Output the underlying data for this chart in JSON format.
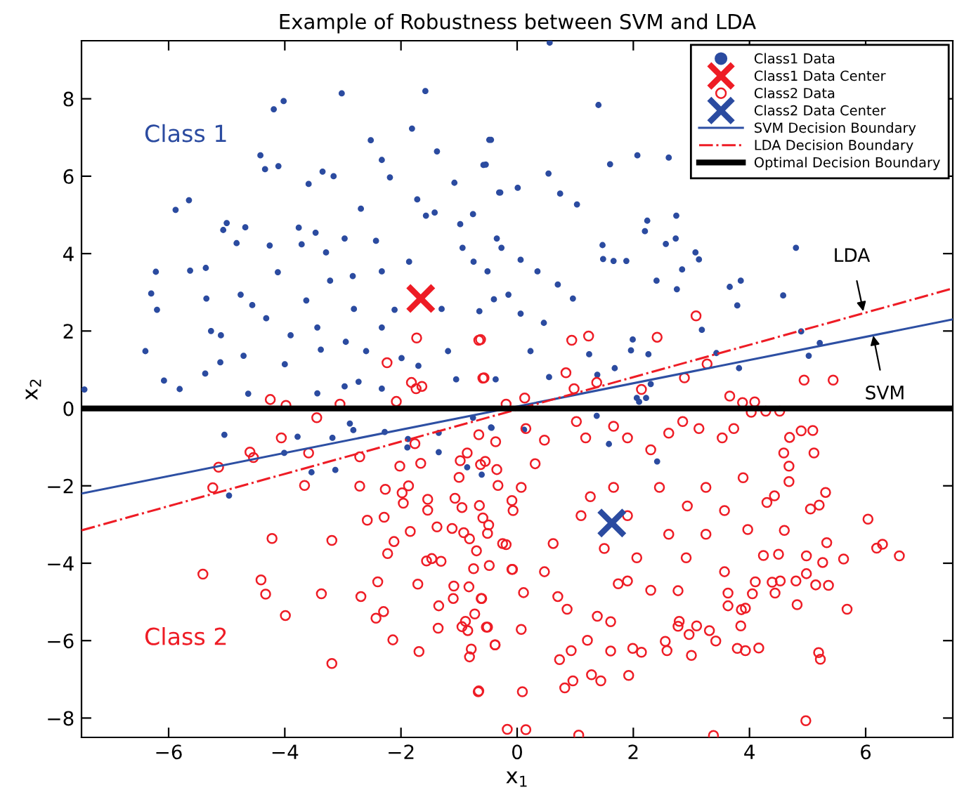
{
  "chart_data": {
    "type": "scatter",
    "title": "Example of Robustness between SVM and LDA",
    "xlabel": "x$_{1}$",
    "ylabel": "x$_{2}$",
    "xlim": [
      -7.5,
      7.5
    ],
    "ylim": [
      -8.5,
      9.5
    ],
    "xticks": [
      -6,
      -4,
      -2,
      0,
      2,
      4,
      6
    ],
    "yticks": [
      -8,
      -6,
      -4,
      -2,
      0,
      2,
      4,
      6,
      8
    ],
    "grid": false,
    "legend": "top right",
    "series": [
      {
        "name": "Class1 Data",
        "marker": "circle",
        "color": "#2b4ba0",
        "x": [
          -7.45,
          -6.4,
          -6.3,
          -6.22,
          -6.2,
          -6.08,
          -5.88,
          -5.81,
          -5.65,
          -5.63,
          -5.36,
          -5.37,
          -5.35,
          -5.27,
          -5.11,
          -5.1,
          -5.06,
          -5.0,
          -4.83,
          -4.76,
          -4.68,
          -4.63,
          -4.56,
          -4.42,
          -4.34,
          -4.19,
          -4.02,
          -4.11,
          -4.26,
          -4.12,
          -4.0,
          -3.9,
          -3.76,
          -3.71,
          -3.63,
          -3.59,
          -3.47,
          -3.35,
          -3.38,
          -3.22,
          -3.16,
          -3.02,
          -2.95,
          -2.83,
          -2.69,
          -2.52,
          -2.6,
          -2.33,
          -2.43,
          -2.19,
          -2.11,
          -1.99,
          -1.81,
          -1.58,
          -1.38,
          -1.72,
          -1.57,
          -1.3,
          -1.42,
          -1.08,
          -1.19,
          -0.94,
          -0.76,
          -0.58,
          -0.48,
          -0.31,
          -0.51,
          -0.65,
          -0.37,
          -0.15,
          -1.05,
          -1.7,
          -2.73,
          -3.44,
          -2.33,
          -2.97,
          -2.33,
          -2.81,
          -3.44,
          -4.32,
          -4.71,
          -2.33,
          -1.86,
          -0.98,
          -0.75,
          -0.35,
          -2.97,
          -3.29,
          0.56,
          1.4,
          -0.45,
          -0.54,
          0.54,
          0.01,
          -0.29,
          0.74,
          1.03,
          1.6,
          2.07,
          2.61,
          2.24,
          2.2,
          2.74,
          2.73,
          2.56,
          1.47,
          1.48,
          1.66,
          1.88,
          2.4,
          2.75,
          3.07,
          3.13,
          2.84,
          3.66,
          3.85,
          3.79,
          4.58,
          4.8,
          4.89,
          5.02,
          5.21,
          3.82,
          3.43,
          3.18,
          1.99,
          1.96,
          2.26,
          1.68,
          1.24,
          0.96,
          0.7,
          0.35,
          0.06,
          -0.27,
          -0.4,
          0.06,
          0.46,
          0.23,
          0.55,
          1.38,
          2.06,
          2.3,
          -5.04,
          -4.96,
          -4.01,
          -3.78,
          -3.54,
          -3.13,
          -3.18,
          -2.88,
          -2.82,
          -2.28,
          -1.88,
          -1.89,
          -1.35,
          -1.35,
          -0.86,
          -0.61,
          -0.44,
          -0.76,
          -0.45,
          0.12,
          1.37,
          1.58,
          2.41,
          2.1,
          2.22
        ],
        "values": [
          0.49,
          1.48,
          2.97,
          3.53,
          2.55,
          0.72,
          5.13,
          0.5,
          5.38,
          3.56,
          3.63,
          0.9,
          2.84,
          2.0,
          1.19,
          1.89,
          4.61,
          4.79,
          4.27,
          2.94,
          4.68,
          0.38,
          2.67,
          6.54,
          6.18,
          7.73,
          7.94,
          6.26,
          4.21,
          3.52,
          1.14,
          1.89,
          4.67,
          4.24,
          2.79,
          5.8,
          4.54,
          6.12,
          1.52,
          3.3,
          6.0,
          8.14,
          1.72,
          3.42,
          5.16,
          6.93,
          1.48,
          6.42,
          4.33,
          5.97,
          2.55,
          1.3,
          7.23,
          8.2,
          6.64,
          5.4,
          4.98,
          2.57,
          5.06,
          5.83,
          1.48,
          4.15,
          5.02,
          6.29,
          6.94,
          5.58,
          3.54,
          2.51,
          0.75,
          2.94,
          0.75,
          1.1,
          0.69,
          0.39,
          0.51,
          0.57,
          2.09,
          2.57,
          2.09,
          2.33,
          1.36,
          3.54,
          3.79,
          4.76,
          3.79,
          4.39,
          4.39,
          4.03,
          9.45,
          7.84,
          6.94,
          6.3,
          6.07,
          5.7,
          5.58,
          5.55,
          5.27,
          6.31,
          6.54,
          6.48,
          4.85,
          4.58,
          4.98,
          4.39,
          4.25,
          4.22,
          3.86,
          3.81,
          3.81,
          3.3,
          3.08,
          4.03,
          3.85,
          3.59,
          3.14,
          3.3,
          2.66,
          2.92,
          4.15,
          1.99,
          1.36,
          1.69,
          1.04,
          1.43,
          2.03,
          1.78,
          1.5,
          1.4,
          1.04,
          1.4,
          2.84,
          3.2,
          3.54,
          3.84,
          4.15,
          2.82,
          2.45,
          2.21,
          1.48,
          0.81,
          0.87,
          0.27,
          0.63,
          -0.68,
          -2.25,
          -1.15,
          -0.73,
          -1.65,
          -1.59,
          -0.76,
          -0.39,
          -0.56,
          -0.61,
          -0.79,
          -1.01,
          -1.13,
          -0.63,
          -1.52,
          -1.71,
          -0.5,
          -0.24,
          -0.49,
          -0.55,
          -0.19,
          -0.92,
          -1.37,
          0.17,
          0.27
        ]
      },
      {
        "name": "Class1 Data Center",
        "marker": "cross",
        "color": "#ee1c25",
        "x": [
          -1.66
        ],
        "values": [
          2.84
        ]
      },
      {
        "name": "Class2 Data",
        "marker": "circle",
        "color": "#ee1c25",
        "x": [
          -1.73,
          -2.24,
          -1.82,
          -1.74,
          -1.64,
          -2.08,
          -3.05,
          -3.98,
          -4.25,
          -0.66,
          -0.59,
          -0.19,
          3.08,
          2.41,
          1.23,
          0.94,
          -0.63,
          0.84,
          2.88,
          3.27,
          4.94,
          5.44,
          0.98,
          1.37,
          2.14,
          3.66,
          3.88,
          4.09,
          -0.57,
          0.13,
          -5.41,
          -5.24,
          -5.14,
          -4.6,
          -4.54,
          -4.41,
          -4.33,
          -4.22,
          -4.06,
          -3.99,
          -3.66,
          -3.59,
          -3.45,
          -3.37,
          -3.19,
          -3.19,
          -2.71,
          -2.71,
          -2.69,
          -2.58,
          -2.43,
          -2.4,
          -2.3,
          -2.29,
          -2.27,
          -2.23,
          -2.14,
          -2.12,
          -2.02,
          -1.98,
          -1.96,
          -1.87,
          -1.84,
          -1.76,
          -1.71,
          -1.69,
          -1.66,
          -1.56,
          -1.54,
          -1.54,
          -1.47,
          -1.38,
          -1.36,
          -1.35,
          -1.31,
          -1.12,
          -1.1,
          -1.09,
          -1.07,
          -1.0,
          -0.98,
          -0.95,
          -0.92,
          -0.95,
          -0.89,
          -0.86,
          -0.85,
          -0.83,
          -0.82,
          -0.82,
          -0.79,
          -0.75,
          -0.73,
          -0.7,
          -0.67,
          -0.66,
          -0.65,
          -0.63,
          -0.61,
          -0.59,
          -0.55,
          -0.51,
          -0.51,
          -0.48,
          -0.38,
          -0.37,
          -0.35,
          -0.33,
          -0.19,
          -0.17,
          -0.09,
          -0.07,
          -0.66,
          0.15,
          0.09,
          0.07,
          0.11,
          -0.38,
          -0.62,
          -0.53,
          -0.08,
          -0.49,
          -0.25,
          0.07,
          -0.09,
          0.31,
          0.47,
          0.15,
          0.73,
          0.93,
          0.96,
          0.82,
          1.06,
          1.28,
          1.44,
          1.21,
          1.38,
          1.61,
          1.92,
          1.99,
          2.14,
          1.61,
          1.74,
          1.9,
          0.86,
          0.7,
          0.47,
          0.62,
          1.1,
          1.26,
          1.66,
          1.9,
          2.06,
          2.3,
          2.55,
          2.58,
          2.79,
          2.77,
          2.96,
          3.0,
          3.09,
          3.31,
          3.38,
          3.42,
          3.85,
          3.79,
          3.93,
          4.16,
          3.86,
          3.93,
          3.63,
          3.63,
          4.05,
          4.1,
          4.39,
          4.53,
          4.44,
          4.82,
          4.97,
          5.19,
          5.22,
          5.36,
          5.14,
          4.98,
          4.8,
          4.98,
          5.26,
          5.33,
          5.62,
          5.68,
          6.04,
          6.19,
          6.29,
          6.58,
          5.31,
          5.05,
          5.2,
          4.43,
          4.3,
          4.6,
          4.5,
          4.24,
          4.68,
          4.68,
          4.59,
          5.11,
          4.89,
          5.09,
          4.69,
          4.28,
          4.52,
          4.03,
          3.73,
          3.53,
          3.13,
          2.85,
          2.61,
          2.3,
          1.9,
          1.66,
          1.18,
          1.02,
          3.57,
          3.25,
          2.93,
          2.61,
          2.91,
          3.25,
          3.89,
          3.97,
          3.57,
          2.77,
          2.45,
          1.5
        ],
        "values": [
          1.82,
          1.18,
          0.67,
          0.51,
          0.57,
          0.18,
          0.11,
          0.08,
          0.23,
          1.76,
          0.78,
          0.11,
          2.39,
          1.84,
          1.87,
          1.76,
          1.78,
          0.92,
          0.79,
          1.15,
          0.73,
          0.73,
          0.51,
          0.67,
          0.49,
          0.32,
          0.15,
          0.17,
          0.79,
          0.27,
          -4.28,
          -2.05,
          -1.52,
          -1.13,
          -1.27,
          -4.43,
          -4.8,
          -3.36,
          -0.76,
          -5.35,
          -1.99,
          -1.15,
          -0.24,
          -4.79,
          -6.59,
          -3.41,
          -1.25,
          -2.01,
          -4.86,
          -2.89,
          -5.42,
          -4.48,
          -5.25,
          -2.81,
          -2.09,
          -3.75,
          -5.98,
          -3.44,
          -1.49,
          -2.18,
          -2.45,
          -2.0,
          -3.18,
          -0.91,
          -4.54,
          -6.28,
          -1.42,
          -3.94,
          -2.35,
          -2.63,
          -3.88,
          -3.06,
          -5.68,
          -5.1,
          -3.95,
          -3.1,
          -4.91,
          -4.59,
          -2.32,
          -1.78,
          -1.35,
          -2.56,
          -3.21,
          -5.64,
          -5.5,
          -1.15,
          -5.74,
          -4.61,
          -6.42,
          -3.37,
          -6.22,
          -4.14,
          -5.31,
          -3.68,
          -7.32,
          -0.68,
          -2.51,
          -1.45,
          -4.91,
          -2.83,
          -1.37,
          -3.23,
          -5.65,
          -4.06,
          -6.11,
          -0.86,
          -1.58,
          -1.99,
          -3.52,
          -8.29,
          -4.16,
          -2.64,
          -7.3,
          -8.3,
          -7.32,
          -5.71,
          -4.76,
          -6.11,
          -4.91,
          -5.65,
          -4.16,
          -3.01,
          -3.49,
          -2.04,
          -2.38,
          -1.43,
          -0.82,
          -0.52,
          -6.49,
          -6.26,
          -7.04,
          -7.22,
          -8.44,
          -6.88,
          -7.04,
          -5.99,
          -5.37,
          -6.27,
          -6.9,
          -6.2,
          -6.3,
          -5.51,
          -4.53,
          -4.46,
          -5.19,
          -4.86,
          -4.22,
          -3.49,
          -2.77,
          -2.28,
          -2.04,
          -2.77,
          -3.86,
          -4.7,
          -6.02,
          -6.26,
          -5.5,
          -5.63,
          -5.84,
          -6.38,
          -5.62,
          -5.74,
          -8.45,
          -6.01,
          -5.62,
          -6.2,
          -6.26,
          -6.19,
          -5.2,
          -5.16,
          -5.1,
          -4.77,
          -4.79,
          -4.48,
          -4.49,
          -4.46,
          -4.77,
          -5.07,
          -8.07,
          -6.31,
          -6.48,
          -4.57,
          -4.56,
          -4.27,
          -4.46,
          -3.81,
          -3.98,
          -3.47,
          -3.89,
          -5.19,
          -2.86,
          -3.61,
          -3.51,
          -3.81,
          -2.17,
          -2.6,
          -2.5,
          -2.26,
          -2.43,
          -3.15,
          -3.77,
          -3.8,
          -1.89,
          -1.49,
          -1.15,
          -1.15,
          -0.58,
          -0.57,
          -0.75,
          -0.07,
          -0.07,
          -0.1,
          -0.52,
          -0.76,
          -0.52,
          -0.34,
          -0.64,
          -1.07,
          -0.76,
          -0.46,
          -0.76,
          -0.34,
          -2.64,
          -3.25,
          -2.52,
          -3.25,
          -3.86,
          -2.04,
          -1.79,
          -3.13,
          -4.22,
          -4.71,
          -2.04,
          -3.62
        ]
      },
      {
        "name": "Class2 Data Center",
        "marker": "cross",
        "color": "#2b4ba0",
        "x": [
          1.63
        ],
        "values": [
          -2.96
        ]
      },
      {
        "name": "SVM Decision Boundary",
        "type": "line",
        "marker": "none",
        "line_style": "solid",
        "color": "#2d4fa3",
        "x": [
          -7.5,
          7.5
        ],
        "values": [
          -2.2,
          2.3
        ]
      },
      {
        "name": "LDA Decision Boundary",
        "type": "line",
        "marker": "none",
        "line_style": "dashdot",
        "color": "#ee1c25",
        "x": [
          -7.5,
          7.5
        ],
        "values": [
          -3.15,
          3.1
        ]
      }
    ],
    "ref_lines": [
      {
        "axis": "y",
        "value": 0,
        "label": "Optimal Decision Boundary",
        "color": "#000000"
      }
    ],
    "annotations": [
      "Class 1",
      "Class 2",
      {
        "text": "LDA",
        "x": 5.96,
        "y": 2.51
      },
      {
        "text": "SVM",
        "x": 6.13,
        "y": 1.88
      }
    ]
  }
}
